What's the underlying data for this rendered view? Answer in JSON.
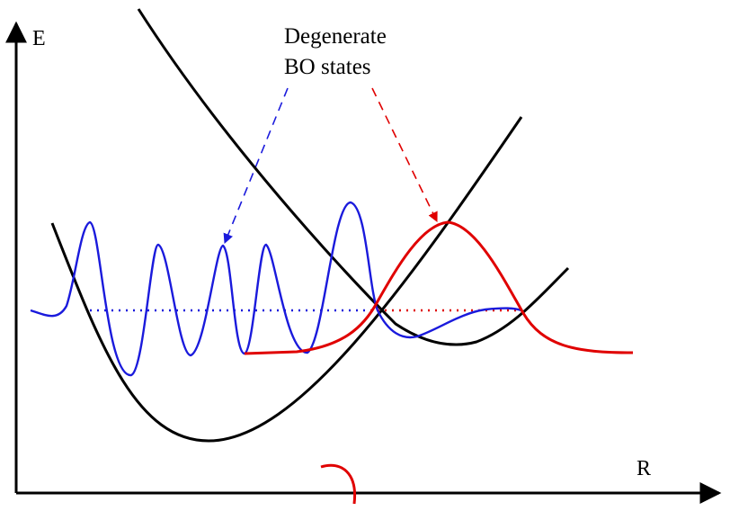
{
  "axes": {
    "y_label": "E",
    "x_label": "R"
  },
  "annotation": {
    "line1": "Degenerate",
    "line2": "BO states"
  },
  "colors": {
    "potential_curves": "#000000",
    "left_state": "#1a1adc",
    "right_state": "#e00000",
    "axes": "#000000"
  }
}
